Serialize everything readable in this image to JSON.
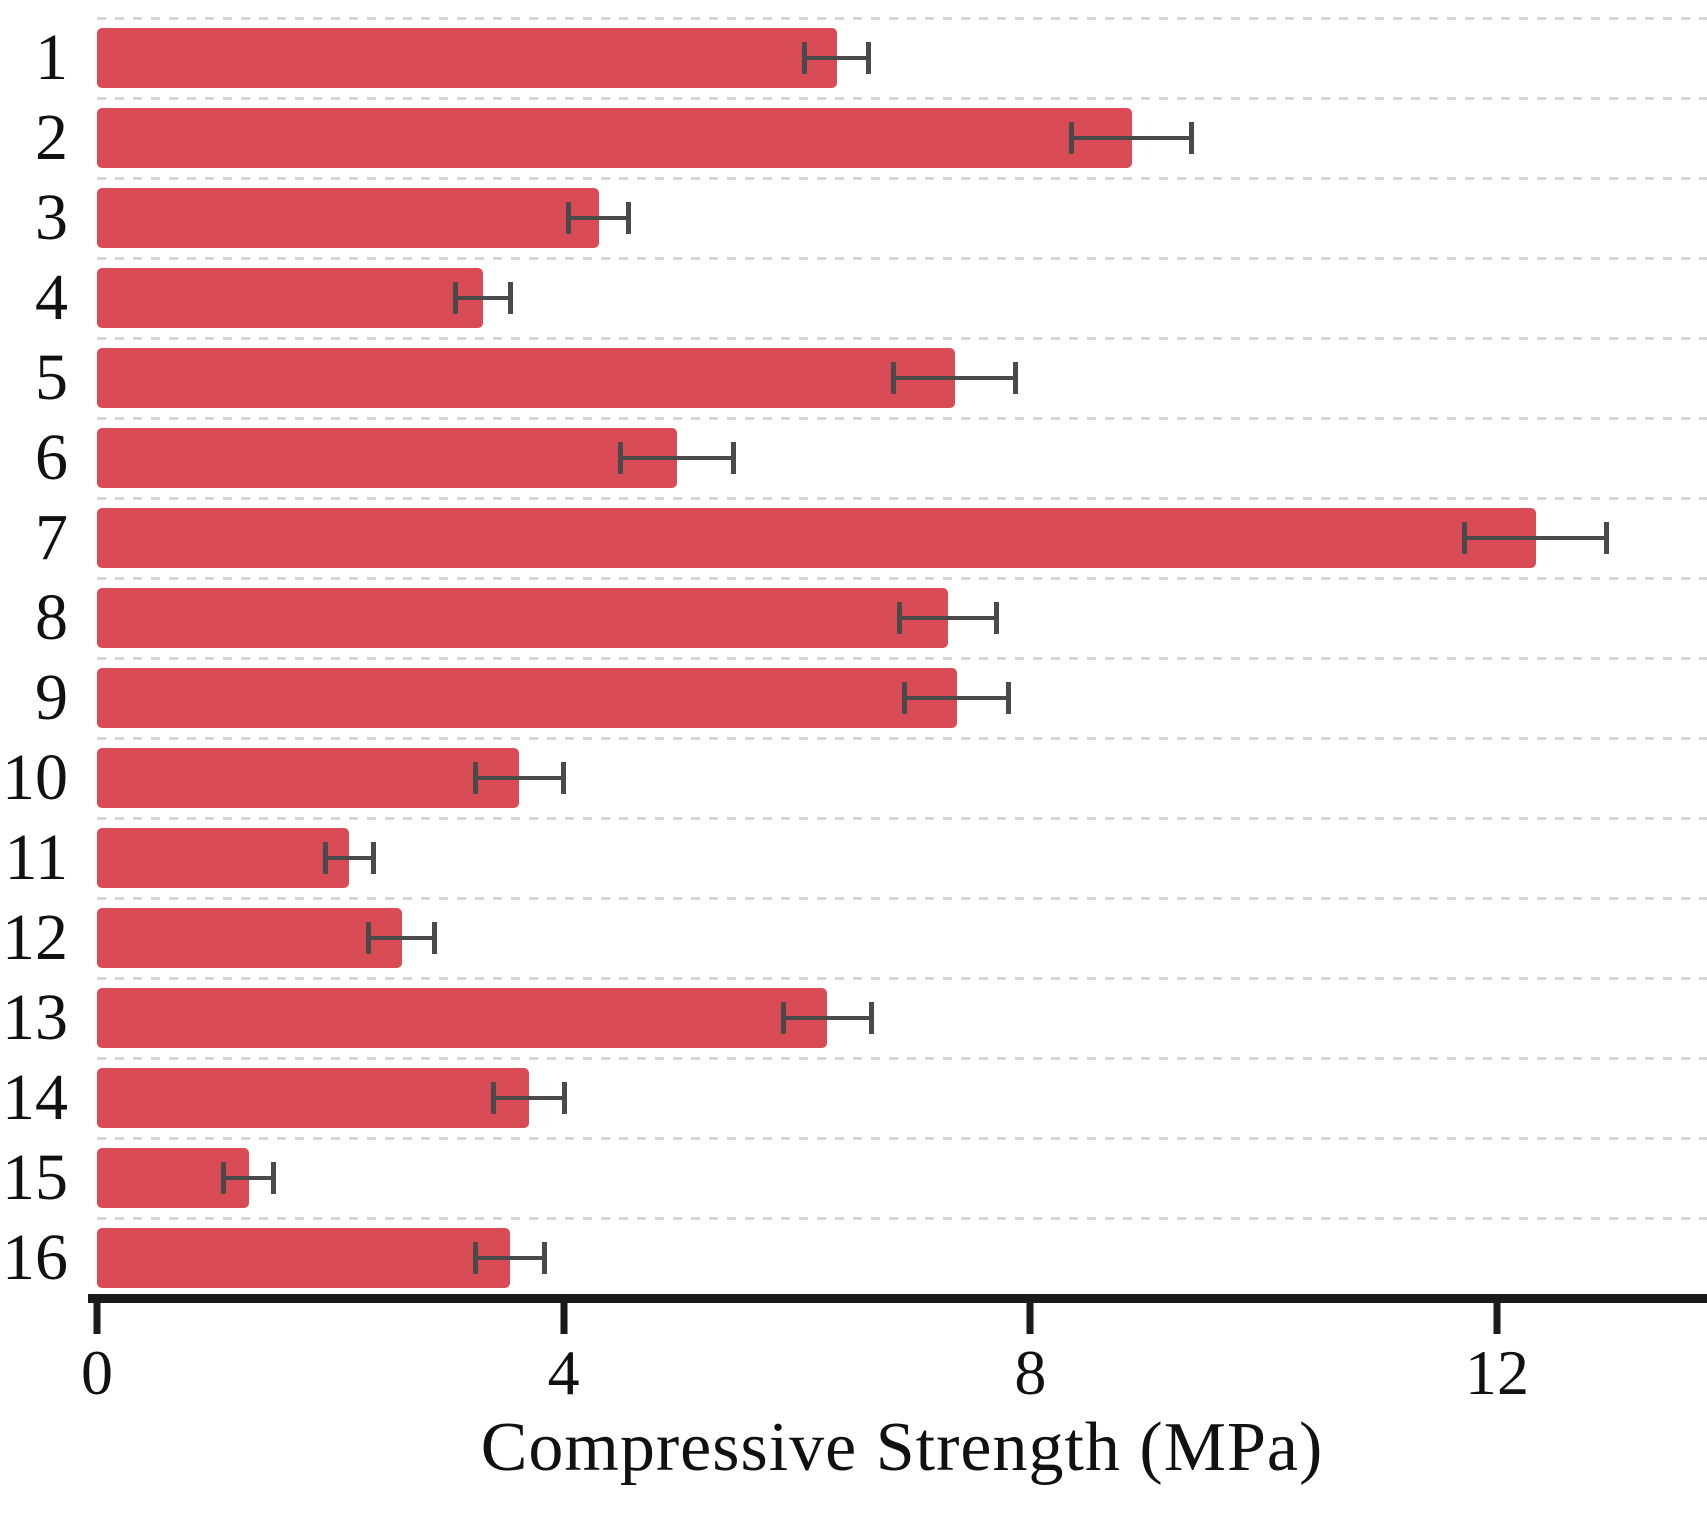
{
  "figure": {
    "background": "#ffffff",
    "bar_color": "#d94c56",
    "error_bar_color": "#4a4a4a",
    "axis_color": "#1a1a1a",
    "grid_color": "#d6d6d6"
  },
  "chart_data": {
    "type": "bar",
    "orientation": "horizontal",
    "title": "",
    "xlabel": "Compressive Strength (MPa)",
    "ylabel": "",
    "categories": [
      "1",
      "2",
      "3",
      "4",
      "5",
      "6",
      "7",
      "8",
      "9",
      "10",
      "11",
      "12",
      "13",
      "14",
      "15",
      "16"
    ],
    "series": [
      {
        "name": "Compressive Strength (MPa)",
        "values": [
          6.34,
          8.87,
          4.3,
          3.31,
          7.35,
          4.97,
          12.33,
          7.29,
          7.37,
          3.62,
          2.16,
          2.61,
          6.26,
          3.7,
          1.3,
          3.54
        ],
        "errors": [
          0.28,
          0.52,
          0.26,
          0.24,
          0.53,
          0.49,
          0.61,
          0.42,
          0.45,
          0.38,
          0.21,
          0.29,
          0.38,
          0.31,
          0.22,
          0.3
        ]
      }
    ],
    "x_ticks": [
      0,
      4,
      8,
      12
    ],
    "x_tick_labels": [
      "0",
      "4",
      "8",
      "12"
    ],
    "xlim": [
      0,
      13.8
    ],
    "grid": "dashed horizontal lines at category boundaries",
    "legend": "none"
  }
}
